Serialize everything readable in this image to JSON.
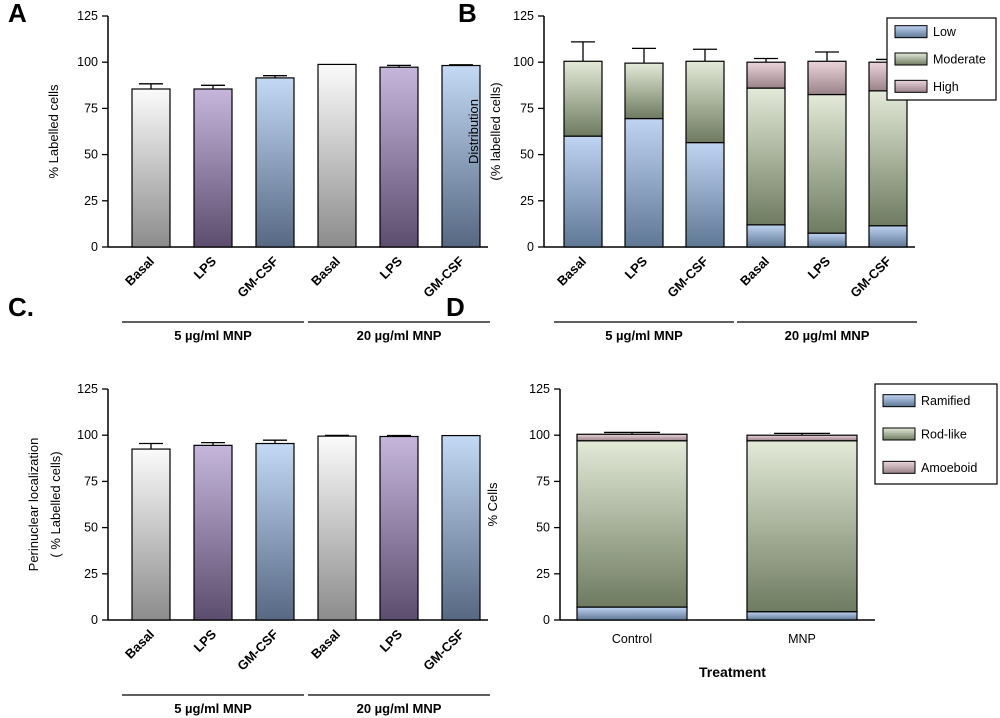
{
  "colors": {
    "basal_top": "#fbfbfb",
    "basal_bottom": "#8c8c8c",
    "lps_top": "#c6b6dc",
    "lps_bottom": "#5c4d6e",
    "gmcsf_top": "#c3d9f4",
    "gmcsf_bottom": "#566882",
    "low_top": "#bfd4f2",
    "low_bottom": "#5f7896",
    "moderate_top": "#e3ead8",
    "moderate_bottom": "#6e7b60",
    "high_top": "#ead4da",
    "high_bottom": "#9a8289",
    "axis": "#000000"
  },
  "chart_data": [
    {
      "panel": "A",
      "type": "bar",
      "ylabel": "% Labelled cells",
      "ylim": [
        0,
        125
      ],
      "yticks": [
        0,
        25,
        50,
        75,
        100,
        125
      ],
      "categories": [
        "Basal",
        "LPS",
        "GM-CSF",
        "Basal",
        "LPS",
        "GM-CSF"
      ],
      "values": [
        85.5,
        85.5,
        91.5,
        98.8,
        97.3,
        98.2
      ],
      "errors": [
        2.8,
        2.0,
        1.2,
        0.0,
        1.0,
        0.4
      ],
      "groups": [
        {
          "label": "5 µg/ml MNP",
          "span": [
            0,
            2
          ]
        },
        {
          "label": "20 µg/ml MNP",
          "span": [
            3,
            5
          ]
        }
      ]
    },
    {
      "panel": "B",
      "type": "bar",
      "stacked": true,
      "ylabel": "Distribution",
      "ylabel2": "(% labelled cells)",
      "ylim": [
        0,
        125
      ],
      "yticks": [
        0,
        25,
        50,
        75,
        100,
        125
      ],
      "categories": [
        "Basal",
        "LPS",
        "GM-CSF",
        "Basal",
        "LPS",
        "GM-CSF"
      ],
      "series": [
        {
          "name": "Low",
          "values": [
            60,
            69.5,
            56.5,
            12,
            7.5,
            11.5
          ],
          "errors": [
            10,
            8.5,
            7.5,
            1.5,
            1.5,
            2.5
          ]
        },
        {
          "name": "Moderate",
          "values": [
            40.5,
            30,
            44,
            74,
            75,
            73
          ],
          "errors": [
            10.5,
            8,
            6.5,
            3,
            5,
            1
          ]
        },
        {
          "name": "High",
          "values": [
            0,
            0,
            0,
            14,
            18,
            15.5
          ],
          "errors": [
            0,
            0,
            0,
            2,
            5,
            1.5
          ]
        }
      ],
      "legend": [
        "Low",
        "Moderate",
        "High"
      ],
      "groups": [
        {
          "label": "5 µg/ml MNP",
          "span": [
            0,
            2
          ]
        },
        {
          "label": "20 µg/ml MNP",
          "span": [
            3,
            5
          ]
        }
      ]
    },
    {
      "panel": "C.",
      "type": "bar",
      "ylabel": "Perinuclear localization",
      "ylabel2": "( % Labelled cells)",
      "ylim": [
        0,
        125
      ],
      "yticks": [
        0,
        25,
        50,
        75,
        100,
        125
      ],
      "categories": [
        "Basal",
        "LPS",
        "GM-CSF",
        "Basal",
        "LPS",
        "GM-CSF"
      ],
      "values": [
        92.5,
        94.5,
        95.5,
        99.5,
        99.3,
        99.8
      ],
      "errors": [
        3.0,
        1.5,
        1.8,
        0.4,
        0.5,
        0.0
      ],
      "groups": [
        {
          "label": "5 µg/ml MNP",
          "span": [
            0,
            2
          ]
        },
        {
          "label": "20 µg/ml MNP",
          "span": [
            3,
            5
          ]
        }
      ]
    },
    {
      "panel": "D",
      "type": "bar",
      "stacked": true,
      "ylabel": "% Cells",
      "xlabel": "Treatment",
      "ylim": [
        0,
        125
      ],
      "yticks": [
        0,
        25,
        50,
        75,
        100,
        125
      ],
      "categories": [
        "Control",
        "MNP"
      ],
      "series": [
        {
          "name": "Ramified",
          "values": [
            7,
            4.5
          ],
          "errors": [
            1.2,
            1.8
          ]
        },
        {
          "name": "Rod-like",
          "values": [
            90,
            92.5
          ],
          "errors": [
            1.5,
            1.5
          ]
        },
        {
          "name": "Amoeboid",
          "values": [
            3.5,
            3
          ],
          "errors": [
            1,
            1
          ]
        }
      ],
      "legend": [
        "Ramified",
        "Rod-like",
        "Amoeboid"
      ]
    }
  ]
}
